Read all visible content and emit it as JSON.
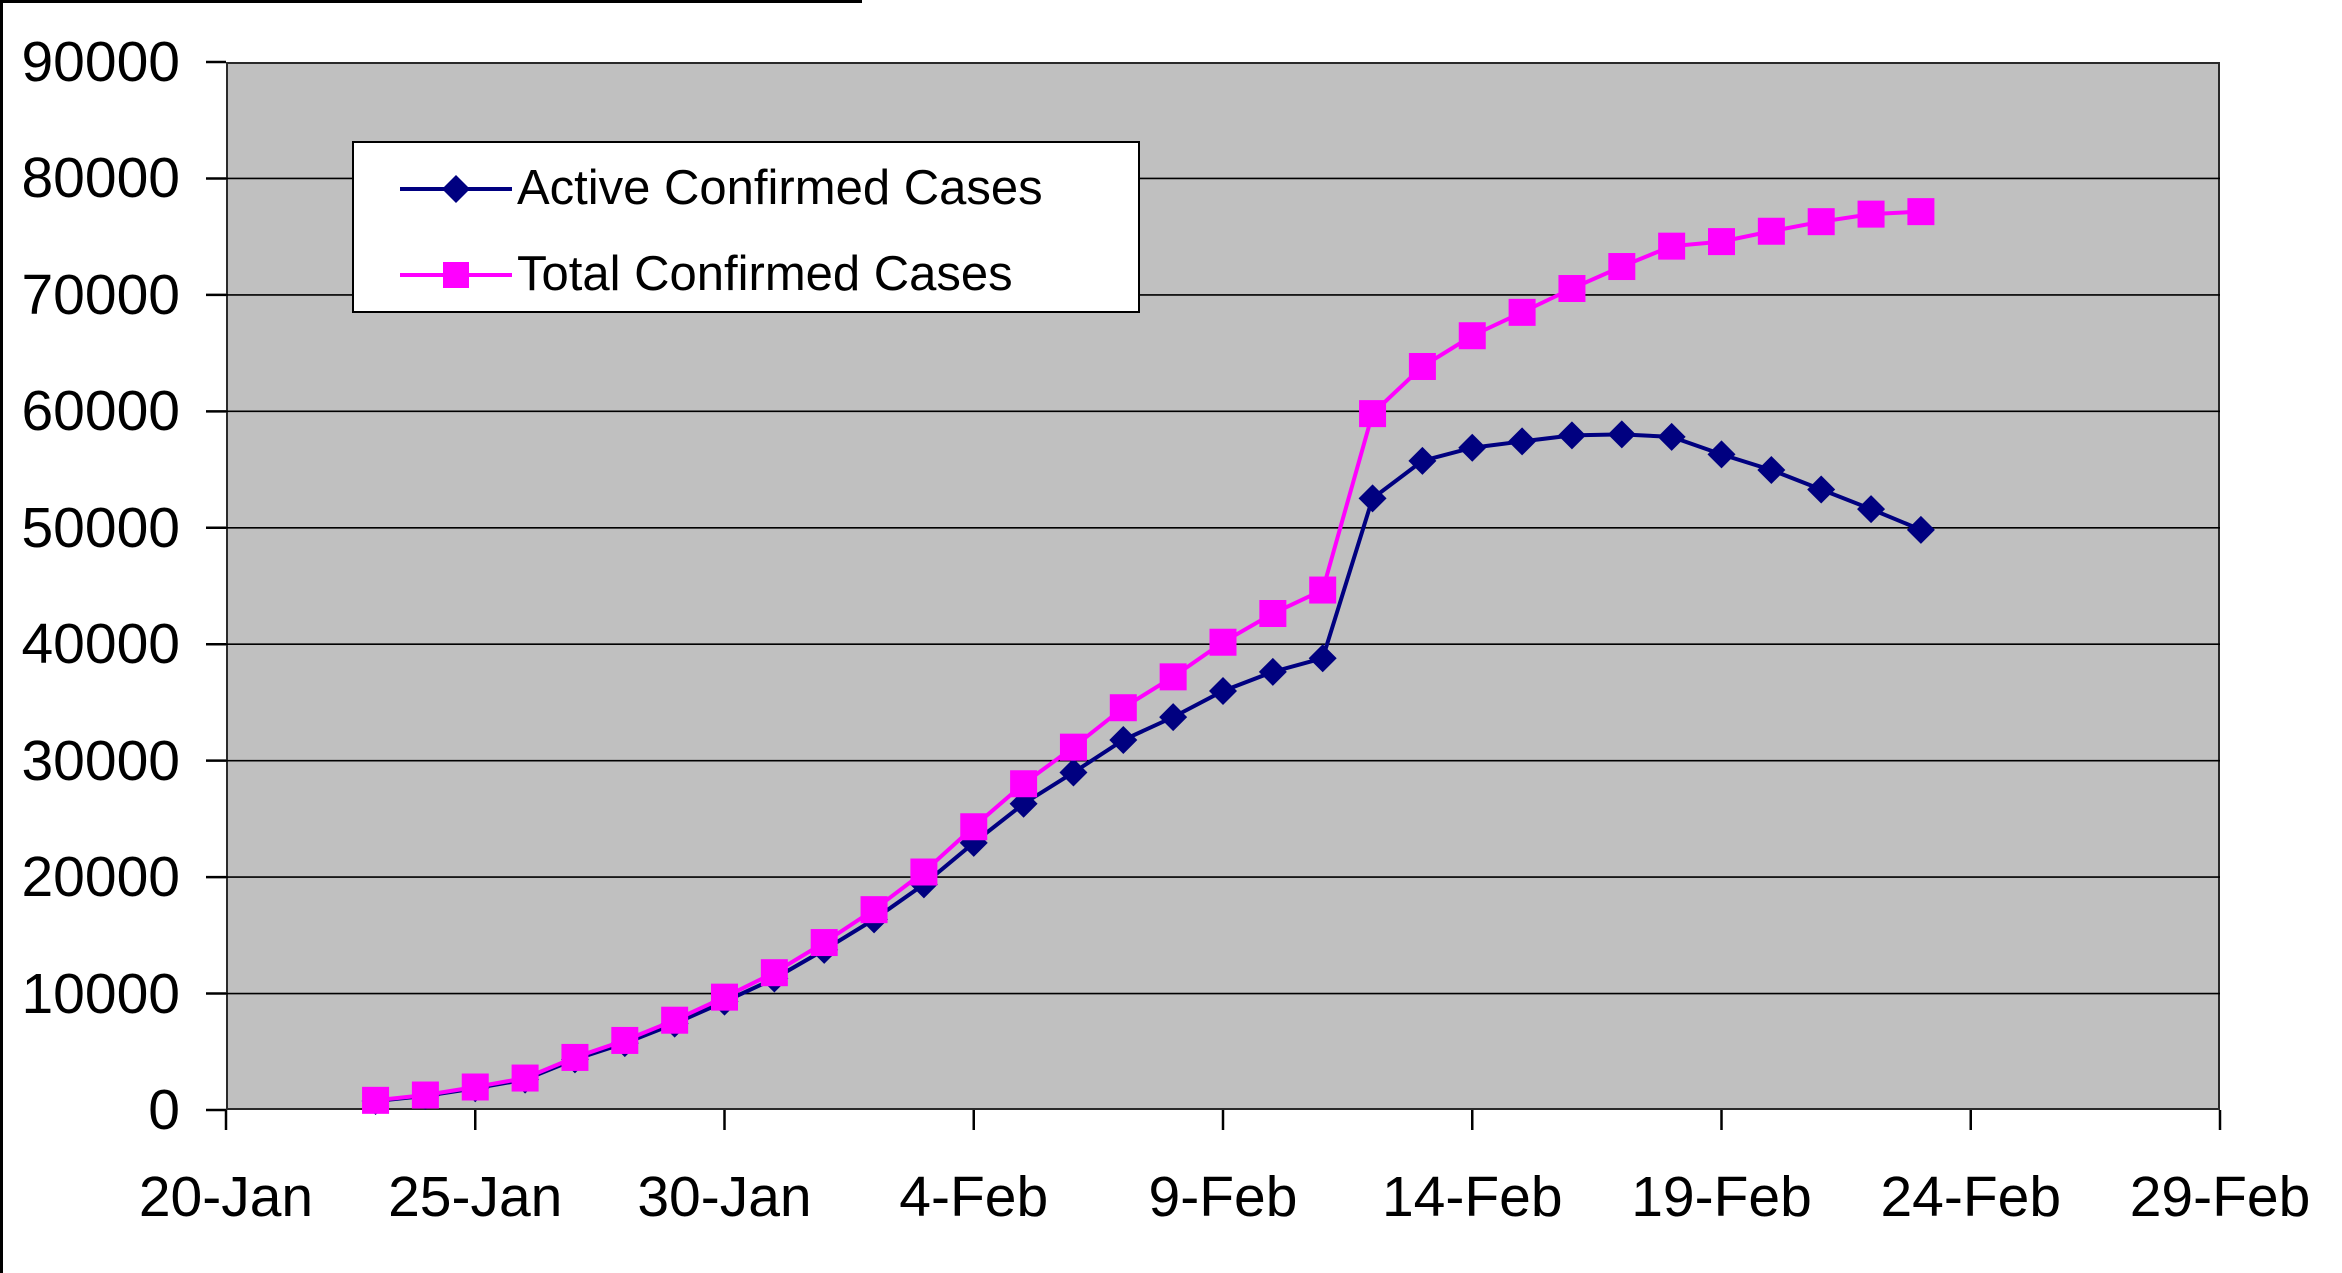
{
  "chart_data": {
    "type": "line",
    "title": "",
    "x": [
      "23-Jan",
      "24-Jan",
      "25-Jan",
      "26-Jan",
      "27-Jan",
      "28-Jan",
      "29-Jan",
      "30-Jan",
      "31-Jan",
      "1-Feb",
      "2-Feb",
      "3-Feb",
      "4-Feb",
      "5-Feb",
      "6-Feb",
      "7-Feb",
      "8-Feb",
      "9-Feb",
      "10-Feb",
      "11-Feb",
      "12-Feb",
      "13-Feb",
      "14-Feb",
      "15-Feb",
      "16-Feb",
      "17-Feb",
      "18-Feb",
      "19-Feb",
      "20-Feb",
      "21-Feb",
      "22-Feb",
      "23-Feb"
    ],
    "x_days_since_axis_start": [
      3,
      4,
      5,
      6,
      7,
      8,
      9,
      10,
      11,
      12,
      13,
      14,
      15,
      16,
      17,
      18,
      19,
      20,
      21,
      22,
      23,
      24,
      25,
      26,
      27,
      28,
      29,
      30,
      31,
      32,
      33,
      34
    ],
    "series": [
      {
        "name": "Active Confirmed Cases",
        "marker": "diamond",
        "color": "#000080",
        "values": [
          771,
          1208,
          1870,
          2613,
          4349,
          5739,
          7417,
          9308,
          11289,
          13748,
          16369,
          19381,
          22942,
          26302,
          28985,
          31774,
          33738,
          35982,
          37626,
          38800,
          52526,
          55748,
          56873,
          57416,
          57934,
          58016,
          57805,
          56303,
          54965,
          53284,
          51606,
          49824
        ]
      },
      {
        "name": "Total Confirmed Cases",
        "marker": "square",
        "color": "#FF00FF",
        "values": [
          830,
          1287,
          1975,
          2744,
          4515,
          5974,
          7711,
          9692,
          11791,
          14380,
          17205,
          20438,
          24324,
          28018,
          31161,
          34546,
          37198,
          40171,
          42638,
          44653,
          59804,
          63851,
          66492,
          68500,
          70548,
          72436,
          74185,
          74576,
          75465,
          76288,
          76936,
          77150
        ]
      }
    ],
    "x_axis": {
      "tick_labels": [
        "20-Jan",
        "25-Jan",
        "30-Jan",
        "4-Feb",
        "9-Feb",
        "14-Feb",
        "19-Feb",
        "24-Feb",
        "29-Feb"
      ],
      "tick_days": [
        0,
        5,
        10,
        15,
        20,
        25,
        30,
        35,
        40
      ],
      "range_days": [
        0,
        40
      ]
    },
    "y_axis": {
      "min": 0,
      "max": 90000,
      "tick_step": 10000,
      "tick_labels": [
        "0",
        "10000",
        "20000",
        "30000",
        "40000",
        "50000",
        "60000",
        "70000",
        "80000",
        "90000"
      ]
    },
    "grid": "horizontal",
    "legend_position": "top-left-inside",
    "plot_bg_color": "#C0C0C0",
    "gridline_color": "#000000"
  }
}
